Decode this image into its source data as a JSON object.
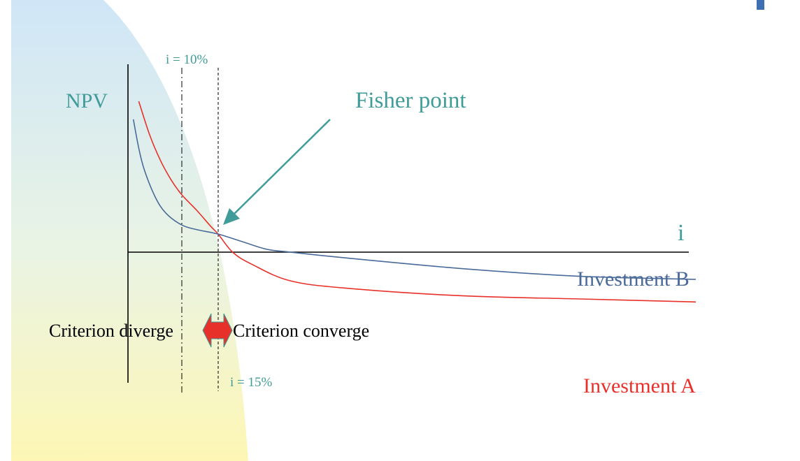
{
  "chart_data": {
    "type": "line",
    "title": "",
    "xlabel": "i",
    "ylabel": "NPV",
    "series": [
      {
        "name": "Investment A",
        "x": [
          2,
          4,
          6,
          8,
          10,
          12,
          14,
          15,
          18,
          22,
          30,
          40,
          60,
          80,
          100
        ],
        "y": [
          1.0,
          0.78,
          0.61,
          0.48,
          0.38,
          0.28,
          0.17,
          0.12,
          0.0,
          -0.08,
          -0.19,
          -0.24,
          -0.29,
          -0.31,
          -0.33
        ]
      },
      {
        "name": "Investment B",
        "x": [
          1,
          2,
          3,
          5,
          7,
          10,
          12,
          15,
          20,
          25,
          30,
          40,
          60,
          80,
          100
        ],
        "y": [
          0.88,
          0.69,
          0.55,
          0.37,
          0.26,
          0.18,
          0.15,
          0.12,
          0.07,
          0.02,
          0.0,
          -0.04,
          -0.11,
          -0.16,
          -0.18
        ]
      }
    ],
    "annotations": {
      "fisher": "Fisher point",
      "rate_10": "i = 10%",
      "rate_15": "i = 15%",
      "diverge": "Criterion diverge",
      "converge": "Criterion converge"
    },
    "colors": {
      "A": "#e8302a",
      "B": "#4a6a9a",
      "accent": "#3f9c98",
      "arrow": "#e8302a"
    },
    "grid": false,
    "legend": "labels next to curves (right)"
  }
}
